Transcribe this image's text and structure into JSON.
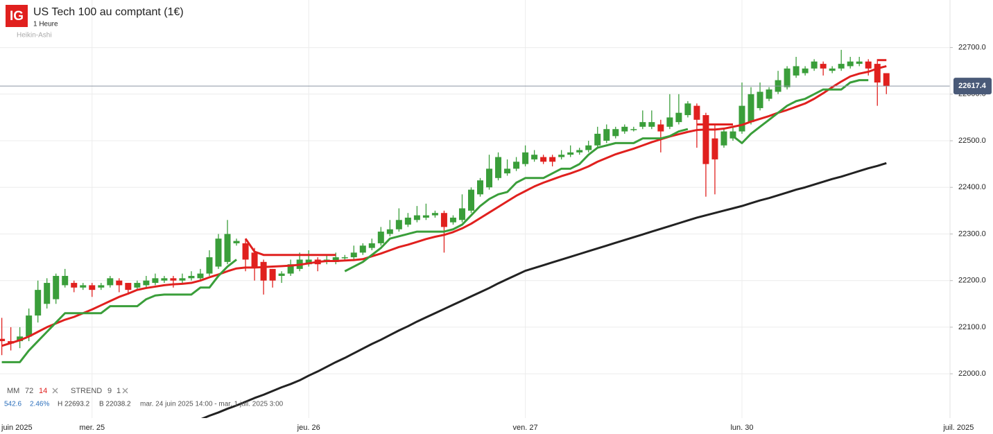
{
  "header": {
    "logo": "IG",
    "title": "US Tech 100 au comptant (1€)",
    "interval": "1 Heure",
    "chart_style": "Heikin-Ashi"
  },
  "stats": {
    "change": "542.6",
    "change_pct": "2.46%",
    "high": "H 22693.2",
    "low": "B 22038.2",
    "range": "mar. 24 juin 2025 14:00 - mar. 1 juil. 2025 3:00"
  },
  "chart_data": {
    "type": "candlestick",
    "up_color": "#3a9e3a",
    "down_color": "#e0201e",
    "x": [
      0,
      1,
      2,
      3,
      4,
      5,
      6,
      7,
      8,
      9,
      10,
      11,
      12,
      13,
      14,
      15,
      16,
      17,
      18,
      19,
      20,
      21,
      22,
      23,
      24,
      25,
      26,
      27,
      28,
      29,
      30,
      31,
      32,
      33,
      34,
      35,
      36,
      37,
      38,
      39,
      40,
      41,
      42,
      43,
      44,
      45,
      46,
      47,
      48,
      49,
      50,
      51,
      52,
      53,
      54,
      55,
      56,
      57,
      58,
      59,
      60,
      61,
      62,
      63,
      64,
      65,
      66,
      67,
      68,
      69,
      70,
      71,
      72,
      73,
      74,
      75,
      76,
      77,
      78,
      79,
      80,
      81,
      82,
      83,
      84,
      85,
      86,
      87,
      88,
      89,
      90,
      91,
      92,
      93,
      94,
      95,
      96,
      97,
      98
    ],
    "open": [
      22075,
      22070,
      22070,
      22080,
      22125,
      22150,
      22160,
      22190,
      22195,
      22185,
      22190,
      22185,
      22190,
      22200,
      22195,
      22185,
      22190,
      22195,
      22200,
      22205,
      22200,
      22205,
      22205,
      22215,
      22230,
      22240,
      22280,
      22280,
      22260,
      22240,
      22225,
      22210,
      22215,
      22225,
      22235,
      22245,
      22240,
      22240,
      22250,
      22250,
      22260,
      22270,
      22280,
      22300,
      22310,
      22320,
      22330,
      22335,
      22340,
      22345,
      22325,
      22330,
      22350,
      22385,
      22400,
      22420,
      22430,
      22440,
      22450,
      22460,
      22465,
      22465,
      22465,
      22470,
      22475,
      22480,
      22490,
      22500,
      22510,
      22520,
      22525,
      22530,
      22530,
      22535,
      22530,
      22540,
      22555,
      22575,
      22555,
      22505,
      22490,
      22505,
      22520,
      22540,
      22570,
      22590,
      22605,
      22615,
      22640,
      22645,
      22655,
      22665,
      22650,
      22655,
      22660,
      22665,
      22670,
      22665,
      22645
    ],
    "high": [
      22120,
      22100,
      22100,
      22140,
      22200,
      22205,
      22215,
      22225,
      22200,
      22195,
      22195,
      22195,
      22210,
      22205,
      22195,
      22200,
      22210,
      22215,
      22210,
      22210,
      22215,
      22220,
      22225,
      22265,
      22300,
      22330,
      22290,
      22290,
      22270,
      22245,
      22225,
      22220,
      22245,
      22260,
      22265,
      22250,
      22255,
      22260,
      22255,
      22275,
      22280,
      22290,
      22315,
      22330,
      22355,
      22345,
      22360,
      22365,
      22350,
      22350,
      22340,
      22385,
      22400,
      22420,
      22470,
      22475,
      22460,
      22465,
      22490,
      22480,
      22470,
      22470,
      22480,
      22490,
      22485,
      22500,
      22530,
      22535,
      22530,
      22535,
      22530,
      22565,
      22565,
      22545,
      22600,
      22600,
      22585,
      22580,
      22560,
      22535,
      22525,
      22530,
      22625,
      22615,
      22625,
      22615,
      22650,
      22660,
      22680,
      22660,
      22675,
      22670,
      22660,
      22695,
      22680,
      22680,
      22675,
      22675,
      22645
    ],
    "low": [
      22040,
      22050,
      22055,
      22070,
      22110,
      22140,
      22150,
      22185,
      22175,
      22180,
      22165,
      22180,
      22185,
      22175,
      22170,
      22180,
      22185,
      22190,
      22195,
      22185,
      22195,
      22200,
      22200,
      22210,
      22225,
      22235,
      22275,
      22220,
      22200,
      22170,
      22185,
      22195,
      22210,
      22220,
      22230,
      22220,
      22235,
      22235,
      22245,
      22245,
      22255,
      22265,
      22275,
      22295,
      22305,
      22315,
      22325,
      22330,
      22335,
      22260,
      22320,
      22325,
      22345,
      22380,
      22395,
      22415,
      22425,
      22435,
      22445,
      22455,
      22450,
      22445,
      22460,
      22465,
      22470,
      22475,
      22485,
      22495,
      22505,
      22515,
      22520,
      22525,
      22525,
      22475,
      22525,
      22535,
      22550,
      22485,
      22380,
      22385,
      22485,
      22500,
      22515,
      22535,
      22565,
      22585,
      22600,
      22610,
      22635,
      22640,
      22650,
      22640,
      22645,
      22650,
      22655,
      22660,
      22640,
      22575,
      22600
    ],
    "close": [
      22070,
      22065,
      22080,
      22125,
      22180,
      22195,
      22210,
      22210,
      22185,
      22190,
      22180,
      22190,
      22205,
      22190,
      22180,
      22195,
      22200,
      22205,
      22205,
      22200,
      22205,
      22210,
      22215,
      22250,
      22290,
      22300,
      22285,
      22245,
      22230,
      22200,
      22200,
      22215,
      22235,
      22245,
      22245,
      22235,
      22245,
      22250,
      22250,
      22260,
      22275,
      22280,
      22305,
      22310,
      22330,
      22335,
      22340,
      22340,
      22345,
      22315,
      22335,
      22355,
      22395,
      22415,
      22440,
      22465,
      22440,
      22455,
      22475,
      22470,
      22455,
      22455,
      22470,
      22475,
      22480,
      22490,
      22515,
      22525,
      22525,
      22530,
      22525,
      22540,
      22540,
      22520,
      22550,
      22560,
      22580,
      22545,
      22450,
      22460,
      22520,
      22520,
      22575,
      22600,
      22605,
      22610,
      22630,
      22655,
      22660,
      22655,
      22670,
      22655,
      22655,
      22665,
      22670,
      22670,
      22655,
      22625,
      22617.4
    ],
    "series": [
      {
        "name": "72",
        "color": "#222222",
        "values": [
          null,
          null,
          null,
          null,
          null,
          null,
          null,
          null,
          null,
          null,
          null,
          null,
          null,
          null,
          null,
          null,
          null,
          null,
          null,
          null,
          null,
          null,
          21902,
          21910,
          21917,
          21925,
          21932,
          21940,
          21948,
          21955,
          21963,
          21971,
          21978,
          21986,
          21996,
          22005,
          22015,
          22025,
          22034,
          22044,
          22054,
          22064,
          22073,
          22083,
          22093,
          22102,
          22112,
          22121,
          22130,
          22139,
          22148,
          22157,
          22166,
          22175,
          22184,
          22194,
          22203,
          22212,
          22221,
          22227,
          22233,
          22239,
          22245,
          22251,
          22257,
          22263,
          22269,
          22275,
          22281,
          22287,
          22293,
          22299,
          22305,
          22311,
          22317,
          22323,
          22329,
          22335,
          22340,
          22345,
          22350,
          22355,
          22360,
          22366,
          22372,
          22377,
          22383,
          22389,
          22395,
          22400,
          22406,
          22412,
          22418,
          22423,
          22429,
          22435,
          22441,
          22446,
          22452
        ]
      },
      {
        "name": "14",
        "color": "#e0201e",
        "values": [
          22060,
          22066,
          22072,
          22080,
          22090,
          22100,
          22108,
          22116,
          22122,
          22130,
          22138,
          22147,
          22156,
          22165,
          22172,
          22180,
          22184,
          22187,
          22190,
          22192,
          22193,
          22195,
          22200,
          22207,
          22213,
          22220,
          22226,
          22228,
          22228,
          22229,
          22230,
          22231,
          22232,
          22234,
          22237,
          22240,
          22242,
          22242,
          22243,
          22244,
          22246,
          22252,
          22258,
          22265,
          22272,
          22277,
          22283,
          22289,
          22294,
          22298,
          22304,
          22312,
          22322,
          22334,
          22346,
          22358,
          22370,
          22382,
          22392,
          22402,
          22410,
          22417,
          22424,
          22430,
          22437,
          22445,
          22455,
          22463,
          22471,
          22477,
          22483,
          22490,
          22497,
          22503,
          22509,
          22514,
          22519,
          22523,
          22524,
          22524,
          22526,
          22530,
          22534,
          22541,
          22547,
          22553,
          22560,
          22566,
          22573,
          22580,
          22590,
          22602,
          22615,
          22627,
          22638,
          22644,
          22648,
          22655,
          22660
        ]
      },
      {
        "name": "STREND",
        "color": "#3a9e3a",
        "values": [
          22025,
          22025,
          22025,
          22050,
          22070,
          22090,
          22110,
          22130,
          22130,
          22130,
          22130,
          22130,
          22145,
          22145,
          22145,
          22145,
          22160,
          22168,
          22170,
          22170,
          22170,
          22170,
          22185,
          22185,
          22210,
          22230,
          22245,
          null,
          null,
          null,
          null,
          null,
          null,
          null,
          null,
          null,
          null,
          null,
          22220,
          22230,
          22240,
          22255,
          22270,
          22290,
          22295,
          22300,
          22305,
          22305,
          22305,
          22305,
          22310,
          22320,
          22340,
          22360,
          22375,
          22385,
          22390,
          22410,
          22420,
          22420,
          22420,
          22430,
          22440,
          22440,
          22450,
          22470,
          22485,
          22490,
          22495,
          22495,
          22495,
          22505,
          22505,
          22505,
          22510,
          22520,
          22525,
          null,
          null,
          null,
          null,
          22510,
          22495,
          22515,
          22530,
          22545,
          22560,
          22575,
          22585,
          22590,
          22600,
          22610,
          22610,
          22610,
          22625,
          22630,
          22630,
          null,
          null
        ]
      },
      {
        "color": "#e0201e",
        "values": [
          null,
          null,
          null,
          null,
          null,
          null,
          null,
          null,
          null,
          null,
          null,
          null,
          null,
          null,
          null,
          null,
          null,
          null,
          null,
          null,
          null,
          null,
          null,
          null,
          null,
          null,
          null,
          22290,
          22262,
          22255,
          22255,
          22255,
          22255,
          22255,
          22255,
          22255,
          22255,
          22255,
          null,
          null,
          null,
          null,
          null,
          null,
          null,
          null,
          null,
          null,
          null,
          null,
          null,
          null,
          null,
          null,
          null,
          null,
          null,
          null,
          null,
          null,
          null,
          null,
          null,
          null,
          null,
          null,
          null,
          null,
          null,
          null,
          null,
          null,
          null,
          null,
          null,
          null,
          null,
          22535,
          22535,
          22535,
          22535,
          22535,
          null,
          null,
          null,
          null,
          null,
          null,
          null,
          null,
          null,
          null,
          null,
          null,
          null,
          null,
          null,
          22673,
          22673
        ]
      }
    ],
    "legend_labels": {
      "mm": "MM",
      "strend_params": [
        "9",
        "1"
      ]
    },
    "last_price": 22617.4,
    "last_price_color": "#4a5a78",
    "xlim": [
      -0.2,
      106.2
    ],
    "ylim": [
      21905,
      22802
    ],
    "xticks": [
      {
        "value": -0.2,
        "label": "juin 2025"
      },
      {
        "value": 10,
        "label": "mer. 25"
      },
      {
        "value": 34,
        "label": "jeu. 26"
      },
      {
        "value": 58,
        "label": "ven. 27"
      },
      {
        "value": 82,
        "label": "lun. 30"
      },
      {
        "value": 106,
        "label": "juil. 2025"
      }
    ],
    "yticks": [
      {
        "value": 22000,
        "label": "22000.0"
      },
      {
        "value": 22100,
        "label": "22100.0"
      },
      {
        "value": 22200,
        "label": "22200.0"
      },
      {
        "value": 22300,
        "label": "22300.0"
      },
      {
        "value": 22400,
        "label": "22400.0"
      },
      {
        "value": 22500,
        "label": "22500.0"
      },
      {
        "value": 22600,
        "label": "22600.0"
      },
      {
        "value": 22700,
        "label": "22700.0"
      }
    ],
    "grid": true
  }
}
